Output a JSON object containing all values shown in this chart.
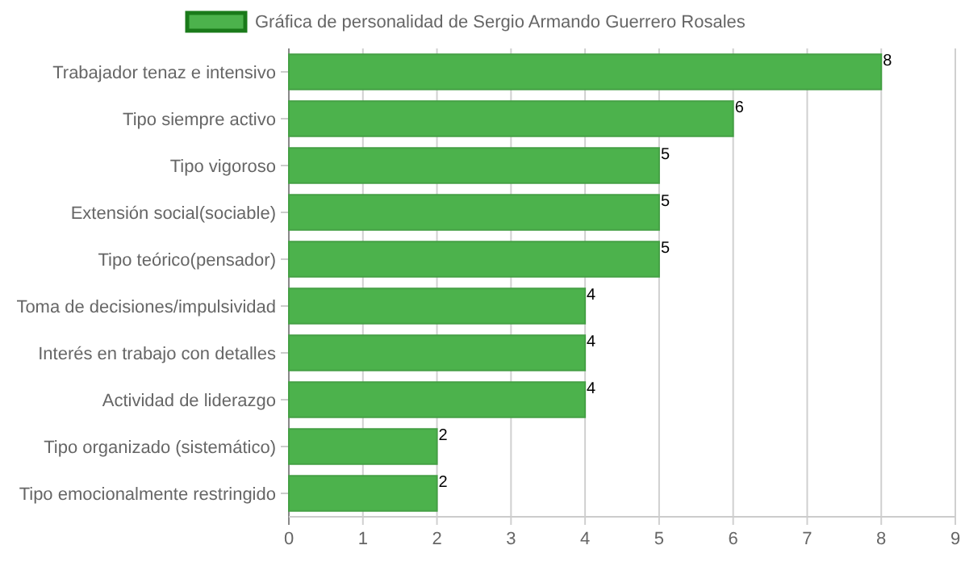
{
  "chart_data": {
    "type": "bar",
    "orientation": "horizontal",
    "categories": [
      "Trabajador tenaz e intensivo",
      "Tipo siempre activo",
      "Tipo vigoroso",
      "Extensión social(sociable)",
      "Tipo teórico(pensador)",
      "Toma de decisiones/impulsividad",
      "Interés en trabajo con detalles",
      "Actividad de liderazgo",
      "Tipo organizado (sistemático)",
      "Tipo emocionalmente restringido"
    ],
    "series": [
      {
        "name": "Gráfica de personalidad de Sergio Armando Guerrero Rosales",
        "color": "#4cb24c",
        "values": [
          8,
          6,
          5,
          5,
          5,
          4,
          4,
          4,
          2,
          2
        ]
      }
    ],
    "xlim": [
      0,
      9
    ],
    "xticks": [
      0,
      1,
      2,
      3,
      4,
      5,
      6,
      7,
      8,
      9
    ],
    "grid": "x",
    "legend": "top",
    "data_labels": true
  }
}
